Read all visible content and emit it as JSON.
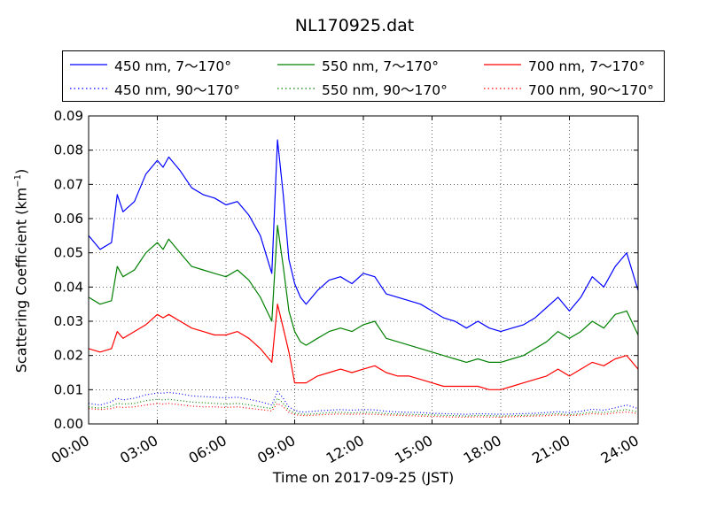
{
  "chart_data": {
    "type": "line",
    "title": "NL170925.dat",
    "xlabel": "Time on 2017-09-25 (JST)",
    "ylabel": "Scattering Coefficient (km",
    "ylabel_sup": "−1",
    "ylabel_tail": ")",
    "xlim": [
      0,
      24
    ],
    "ylim": [
      0,
      0.09
    ],
    "x_ticks": [
      0,
      3,
      6,
      9,
      12,
      15,
      18,
      21,
      24
    ],
    "x_tick_labels": [
      "00:00",
      "03:00",
      "06:00",
      "09:00",
      "12:00",
      "15:00",
      "18:00",
      "21:00",
      "24:00"
    ],
    "y_ticks": [
      0,
      0.01,
      0.02,
      0.03,
      0.04,
      0.05,
      0.06,
      0.07,
      0.08,
      0.09
    ],
    "y_tick_labels": [
      "0.00",
      "0.01",
      "0.02",
      "0.03",
      "0.04",
      "0.05",
      "0.06",
      "0.07",
      "0.08",
      "0.09"
    ],
    "grid": true,
    "legend_position": "top",
    "x": [
      0,
      0.5,
      1,
      1.25,
      1.5,
      2,
      2.5,
      3,
      3.25,
      3.5,
      4,
      4.5,
      5,
      5.5,
      6,
      6.5,
      7,
      7.5,
      8,
      8.25,
      8.5,
      8.75,
      9,
      9.25,
      9.5,
      10,
      10.5,
      11,
      11.5,
      12,
      12.5,
      13,
      13.5,
      14,
      14.5,
      15,
      15.5,
      16,
      16.5,
      17,
      17.5,
      18,
      18.5,
      19,
      19.5,
      20,
      20.5,
      21,
      21.5,
      22,
      22.5,
      23,
      23.5,
      24
    ],
    "series": [
      {
        "name": "450 nm, 7～170°",
        "color": "#0000ff",
        "style": "solid",
        "values": [
          0.055,
          0.051,
          0.053,
          0.067,
          0.062,
          0.065,
          0.073,
          0.077,
          0.075,
          0.078,
          0.074,
          0.069,
          0.067,
          0.066,
          0.064,
          0.065,
          0.061,
          0.055,
          0.044,
          0.083,
          0.067,
          0.048,
          0.041,
          0.037,
          0.035,
          0.039,
          0.042,
          0.043,
          0.041,
          0.044,
          0.043,
          0.038,
          0.037,
          0.036,
          0.035,
          0.033,
          0.031,
          0.03,
          0.028,
          0.03,
          0.028,
          0.027,
          0.028,
          0.029,
          0.031,
          0.034,
          0.037,
          0.033,
          0.037,
          0.043,
          0.04,
          0.046,
          0.05,
          0.039
        ]
      },
      {
        "name": "450 nm, 90～170°",
        "color": "#0000ff",
        "style": "dotted",
        "values": [
          0.006,
          0.0055,
          0.0065,
          0.0075,
          0.007,
          0.0075,
          0.0085,
          0.009,
          0.009,
          0.0092,
          0.0088,
          0.0082,
          0.008,
          0.0078,
          0.0076,
          0.0078,
          0.0072,
          0.0065,
          0.0055,
          0.0095,
          0.0075,
          0.005,
          0.004,
          0.0035,
          0.0035,
          0.0038,
          0.004,
          0.0042,
          0.004,
          0.0042,
          0.0041,
          0.0037,
          0.0035,
          0.0034,
          0.0033,
          0.0031,
          0.003,
          0.0029,
          0.0028,
          0.003,
          0.0029,
          0.0028,
          0.0029,
          0.003,
          0.0031,
          0.0033,
          0.0036,
          0.0033,
          0.0037,
          0.0043,
          0.004,
          0.0047,
          0.0055,
          0.0045
        ]
      },
      {
        "name": "550 nm, 7～170°",
        "color": "#008000",
        "style": "solid",
        "values": [
          0.037,
          0.035,
          0.036,
          0.046,
          0.043,
          0.045,
          0.05,
          0.053,
          0.051,
          0.054,
          0.05,
          0.046,
          0.045,
          0.044,
          0.043,
          0.045,
          0.042,
          0.037,
          0.03,
          0.058,
          0.046,
          0.033,
          0.027,
          0.024,
          0.023,
          0.025,
          0.027,
          0.028,
          0.027,
          0.029,
          0.03,
          0.025,
          0.024,
          0.023,
          0.022,
          0.021,
          0.02,
          0.019,
          0.018,
          0.019,
          0.018,
          0.018,
          0.019,
          0.02,
          0.022,
          0.024,
          0.027,
          0.025,
          0.027,
          0.03,
          0.028,
          0.032,
          0.033,
          0.026
        ]
      },
      {
        "name": "550 nm, 90～170°",
        "color": "#008000",
        "style": "dotted",
        "values": [
          0.005,
          0.0046,
          0.0052,
          0.006,
          0.0058,
          0.006,
          0.0068,
          0.0072,
          0.007,
          0.0072,
          0.0068,
          0.0064,
          0.0062,
          0.006,
          0.0058,
          0.006,
          0.0056,
          0.005,
          0.0045,
          0.0075,
          0.006,
          0.004,
          0.0032,
          0.0029,
          0.0028,
          0.003,
          0.0033,
          0.0034,
          0.0032,
          0.0034,
          0.0033,
          0.003,
          0.0029,
          0.0028,
          0.0027,
          0.0026,
          0.0025,
          0.0024,
          0.0023,
          0.0025,
          0.0024,
          0.0023,
          0.0024,
          0.0025,
          0.0026,
          0.0028,
          0.003,
          0.0027,
          0.003,
          0.0035,
          0.0033,
          0.0038,
          0.0042,
          0.0035
        ]
      },
      {
        "name": "700 nm, 7～170°",
        "color": "#ff0000",
        "style": "solid",
        "values": [
          0.022,
          0.021,
          0.022,
          0.027,
          0.025,
          0.027,
          0.029,
          0.032,
          0.031,
          0.032,
          0.03,
          0.028,
          0.027,
          0.026,
          0.026,
          0.027,
          0.025,
          0.022,
          0.018,
          0.035,
          0.028,
          0.021,
          0.012,
          0.012,
          0.012,
          0.014,
          0.015,
          0.016,
          0.015,
          0.016,
          0.017,
          0.015,
          0.014,
          0.014,
          0.013,
          0.012,
          0.011,
          0.011,
          0.011,
          0.011,
          0.01,
          0.01,
          0.011,
          0.012,
          0.013,
          0.014,
          0.016,
          0.014,
          0.016,
          0.018,
          0.017,
          0.019,
          0.02,
          0.016
        ]
      },
      {
        "name": "700 nm, 90～170°",
        "color": "#ff0000",
        "style": "dotted",
        "values": [
          0.0045,
          0.0042,
          0.0045,
          0.005,
          0.0048,
          0.005,
          0.0055,
          0.006,
          0.0058,
          0.006,
          0.0056,
          0.0052,
          0.005,
          0.005,
          0.0048,
          0.005,
          0.0046,
          0.0042,
          0.0038,
          0.006,
          0.005,
          0.0034,
          0.0027,
          0.0025,
          0.0024,
          0.0026,
          0.0028,
          0.0029,
          0.0028,
          0.0029,
          0.0028,
          0.0026,
          0.0025,
          0.0024,
          0.0023,
          0.0022,
          0.0021,
          0.002,
          0.002,
          0.0021,
          0.002,
          0.002,
          0.0021,
          0.0022,
          0.0023,
          0.0024,
          0.0026,
          0.0024,
          0.0026,
          0.003,
          0.0028,
          0.0032,
          0.0035,
          0.003
        ]
      }
    ]
  }
}
